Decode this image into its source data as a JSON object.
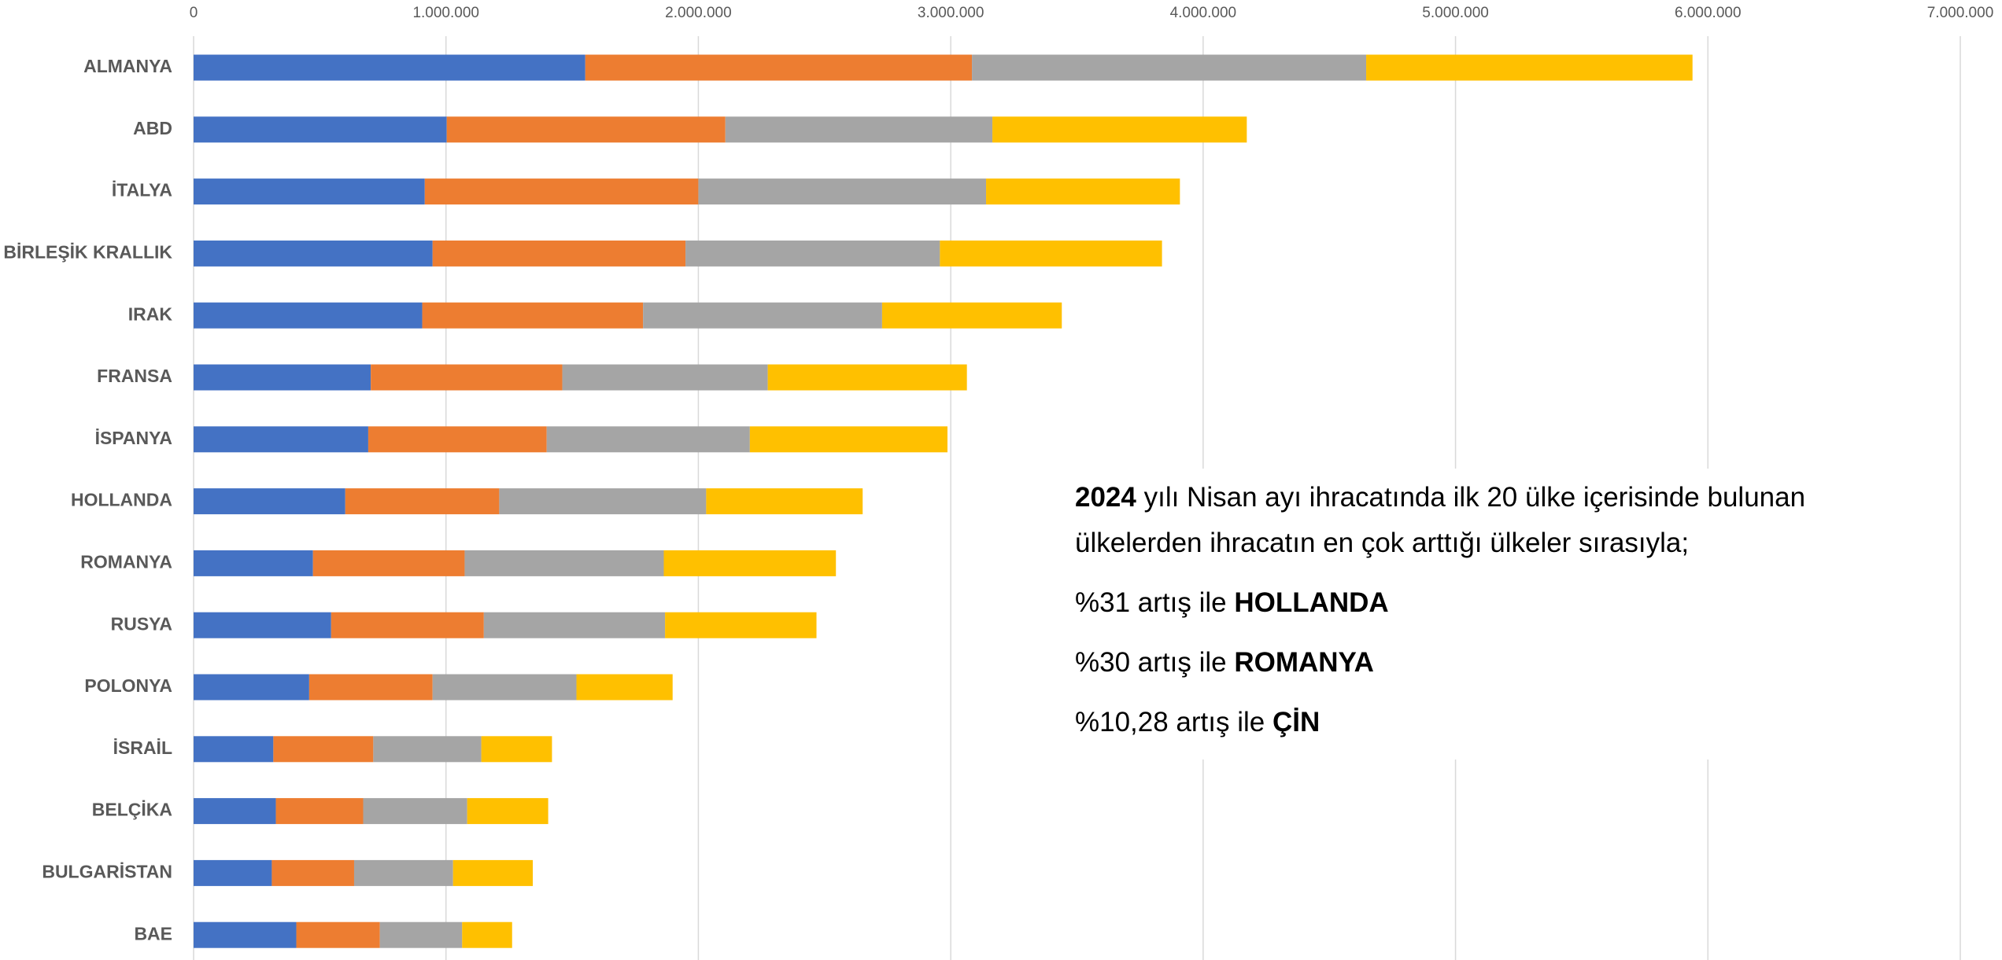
{
  "chart_data": {
    "type": "stacked-bar-horizontal",
    "categories": [
      "ALMANYA",
      "ABD",
      "İTALYA",
      "BİRLEŞİK KRALLIK",
      "IRAK",
      "FRANSA",
      "İSPANYA",
      "HOLLANDA",
      "ROMANYA",
      "RUSYA",
      "POLONYA",
      "İSRAİL",
      "BELÇİKA",
      "BULGARİSTAN",
      "BAE"
    ],
    "series": [
      {
        "color": "#4472c4",
        "values": [
          1552000,
          1003000,
          916000,
          947000,
          906000,
          702000,
          692000,
          601000,
          473000,
          545000,
          458000,
          316000,
          326000,
          310000,
          407000
        ]
      },
      {
        "color": "#ed7d31",
        "values": [
          1532000,
          1104000,
          1084000,
          1002000,
          875000,
          759000,
          707000,
          610000,
          601000,
          605000,
          489000,
          396000,
          346000,
          326000,
          331000
        ]
      },
      {
        "color": "#a5a5a5",
        "values": [
          1562000,
          1058000,
          1140000,
          1008000,
          947000,
          814000,
          805000,
          820000,
          789000,
          718000,
          570000,
          428000,
          412000,
          392000,
          326000
        ]
      },
      {
        "color": "#ffc000",
        "values": [
          1293000,
          1008000,
          768000,
          880000,
          712000,
          789000,
          783000,
          620000,
          682000,
          600000,
          381000,
          280000,
          321000,
          316000,
          198000
        ]
      }
    ],
    "xlim": [
      0,
      7000000
    ],
    "xticks": [
      0,
      {
        "value": 1000000,
        "label": "1.000.000"
      },
      {
        "value": 2000000,
        "label": "2.000.000"
      },
      {
        "value": 3000000,
        "label": "3.000.000"
      },
      {
        "value": 4000000,
        "label": "4.000.000"
      },
      {
        "value": 5000000,
        "label": "5.000.000"
      },
      {
        "value": 6000000,
        "label": "6.000.000"
      },
      {
        "value": 7000000,
        "label": "7.000.000"
      }
    ],
    "grid": true,
    "annotation": [
      [
        {
          "text": "2024",
          "bold": true
        },
        {
          "text": " yılı Nisan ayı ihracatında ilk 20 ülke içerisinde bulunan ülkelerden ihracatın en çok arttığı ülkeler sırasıyla;",
          "bold": false
        }
      ],
      [
        {
          "text": "%31 artış ile ",
          "bold": false
        },
        {
          "text": "HOLLANDA",
          "bold": true
        }
      ],
      [
        {
          "text": "%30 artış ile ",
          "bold": false
        },
        {
          "text": "ROMANYA",
          "bold": true
        }
      ],
      [
        {
          "text": "%10,28 artış ile ",
          "bold": false
        },
        {
          "text": "ÇİN",
          "bold": true
        }
      ]
    ]
  }
}
